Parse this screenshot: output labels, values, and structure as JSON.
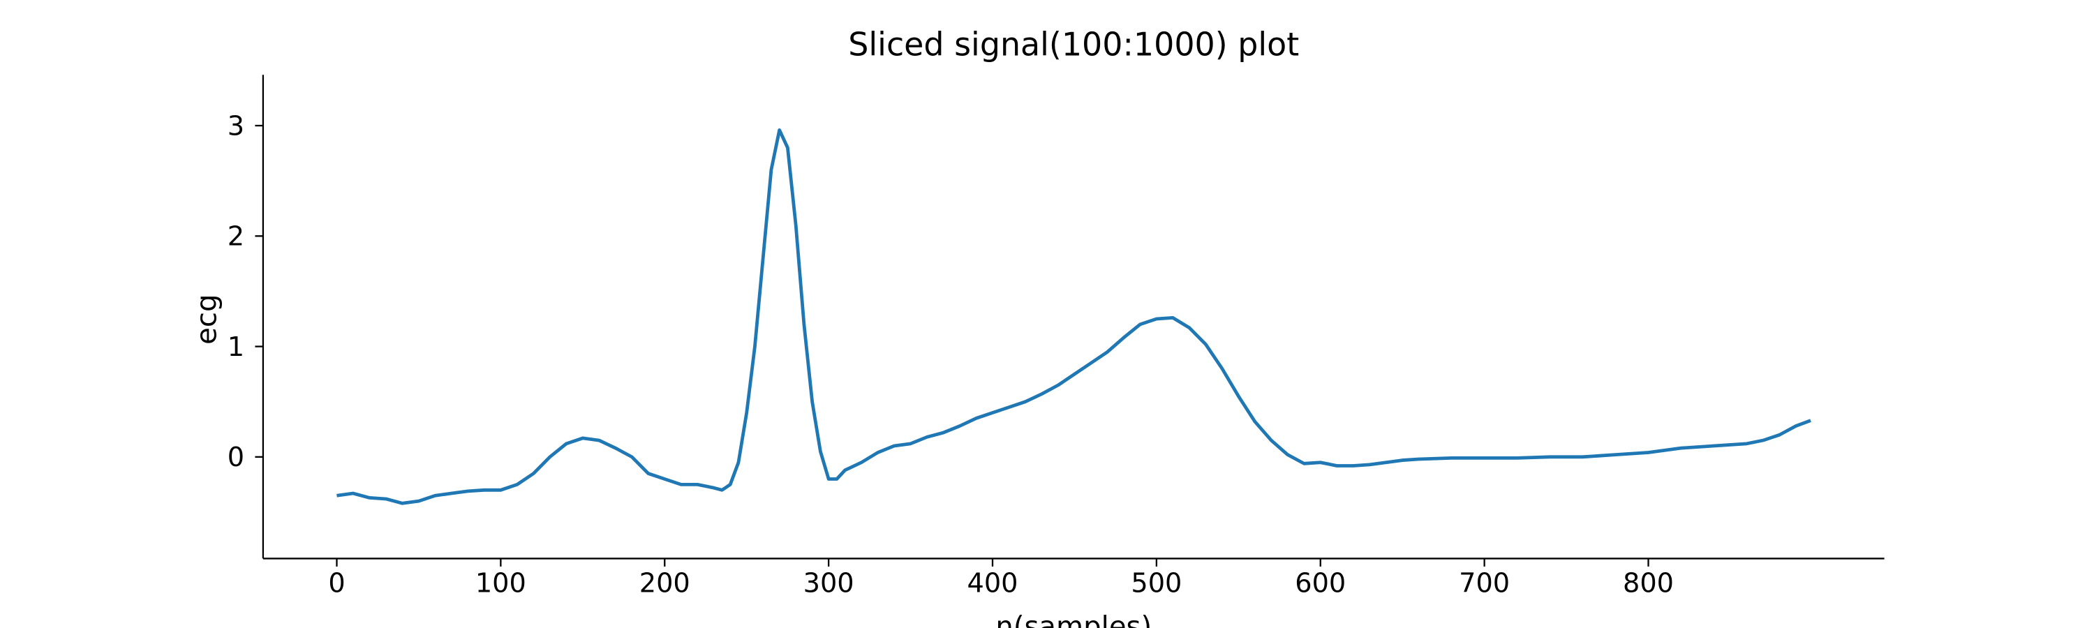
{
  "chart_data": {
    "type": "line",
    "title": "Sliced signal(100:1000) plot",
    "xlabel": "n(samples)",
    "ylabel": "ecg",
    "x": [
      0,
      10,
      20,
      30,
      40,
      50,
      60,
      70,
      80,
      90,
      100,
      110,
      120,
      130,
      140,
      150,
      160,
      170,
      180,
      190,
      200,
      210,
      220,
      230,
      235,
      240,
      245,
      250,
      255,
      260,
      265,
      270,
      275,
      280,
      285,
      290,
      295,
      300,
      305,
      310,
      320,
      330,
      340,
      350,
      360,
      370,
      380,
      390,
      400,
      410,
      420,
      430,
      440,
      450,
      460,
      470,
      480,
      490,
      500,
      510,
      520,
      530,
      540,
      550,
      560,
      570,
      580,
      590,
      600,
      610,
      620,
      630,
      640,
      650,
      660,
      680,
      700,
      720,
      740,
      760,
      780,
      800,
      820,
      840,
      860,
      870,
      880,
      890,
      899
    ],
    "series": [
      {
        "name": "ecg",
        "color": "#1f77b4",
        "values": [
          -0.35,
          -0.33,
          -0.37,
          -0.38,
          -0.42,
          -0.4,
          -0.35,
          -0.33,
          -0.31,
          -0.3,
          -0.3,
          -0.25,
          -0.15,
          0.0,
          0.12,
          0.17,
          0.15,
          0.08,
          0.0,
          -0.15,
          -0.2,
          -0.25,
          -0.25,
          -0.28,
          -0.3,
          -0.25,
          -0.05,
          0.4,
          1.0,
          1.8,
          2.6,
          2.96,
          2.8,
          2.1,
          1.2,
          0.5,
          0.05,
          -0.2,
          -0.2,
          -0.12,
          -0.05,
          0.04,
          0.1,
          0.12,
          0.18,
          0.22,
          0.28,
          0.35,
          0.4,
          0.45,
          0.5,
          0.57,
          0.65,
          0.75,
          0.85,
          0.95,
          1.08,
          1.2,
          1.25,
          1.26,
          1.17,
          1.02,
          0.8,
          0.55,
          0.32,
          0.15,
          0.02,
          -0.06,
          -0.05,
          -0.08,
          -0.08,
          -0.07,
          -0.05,
          -0.03,
          -0.02,
          -0.01,
          -0.01,
          -0.01,
          0.0,
          0.0,
          0.02,
          0.04,
          0.08,
          0.1,
          0.12,
          0.15,
          0.2,
          0.28,
          0.33
        ]
      }
    ],
    "xlim": [
      -44.95,
      943.95
    ],
    "ylim": [
      -0.92,
      3.46
    ],
    "xticks": [
      0,
      100,
      200,
      300,
      400,
      500,
      600,
      700,
      800
    ],
    "yticks": [
      0,
      1,
      2,
      3
    ]
  }
}
